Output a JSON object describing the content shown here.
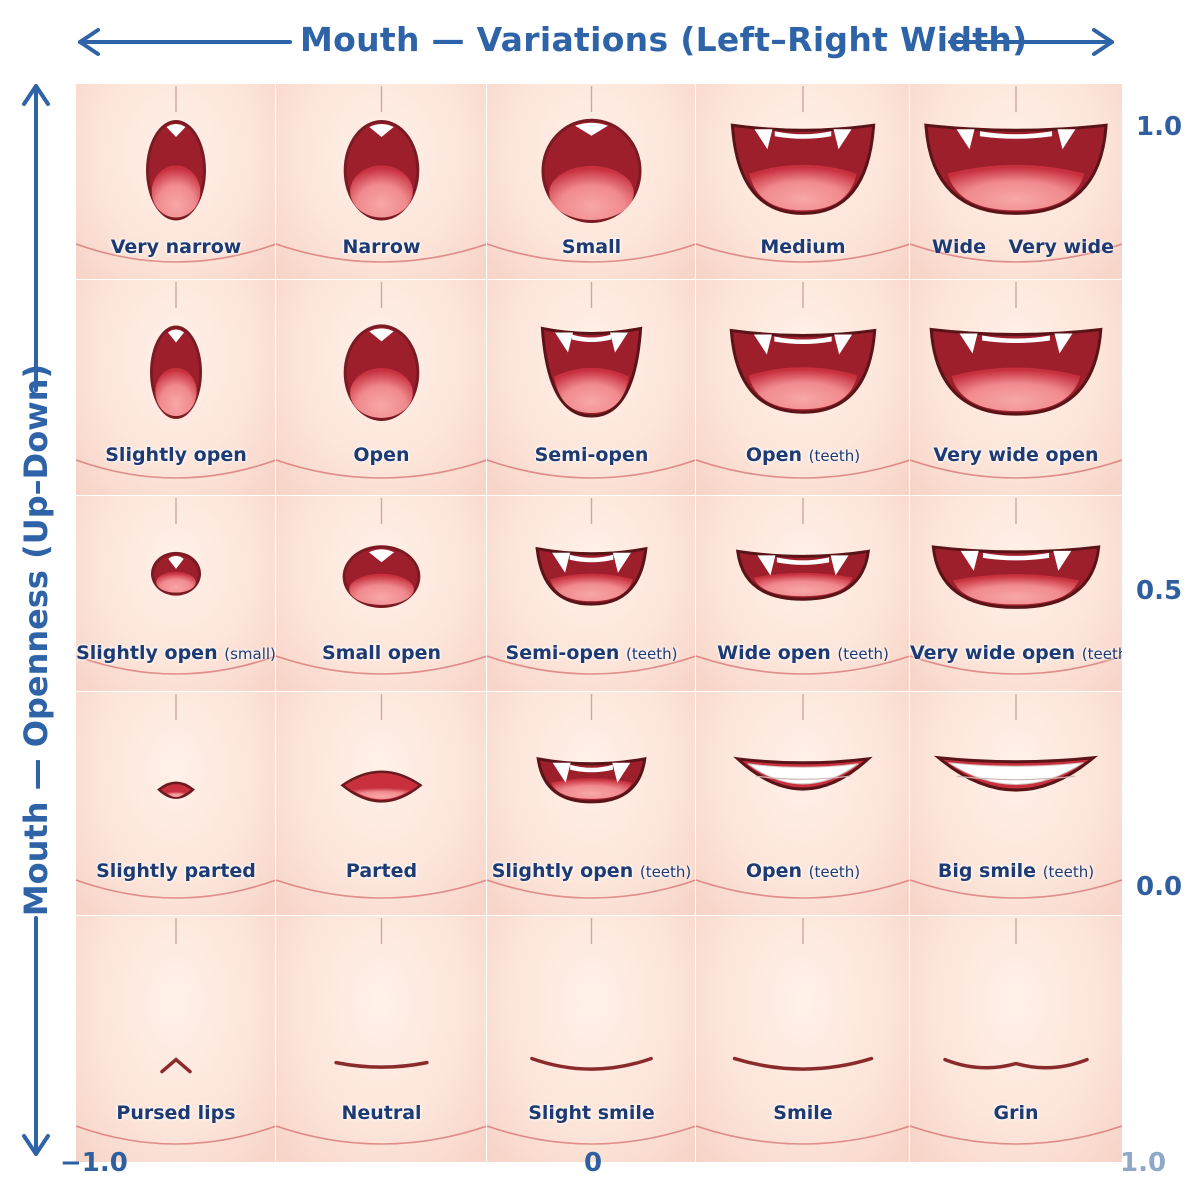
{
  "x_axis_title": "Mouth — Variations (Left–Right Width)",
  "y_axis_title": "Mouth — Openness (Up–Down)",
  "x_ticks": [
    "−1.0",
    "0",
    "1.0"
  ],
  "y_ticks": [
    "1.0",
    "0.5",
    "0.0"
  ],
  "rows": [
    {
      "cells": [
        {
          "label": "Very narrow",
          "shape": "oval",
          "w": 0.27,
          "h": 0.75,
          "teeth": "top-small"
        },
        {
          "label": "Narrow",
          "shape": "oval",
          "w": 0.33,
          "h": 0.75,
          "teeth": "top-small"
        },
        {
          "label": "Small",
          "shape": "round",
          "w": 0.45,
          "h": 0.78,
          "teeth": "fangs"
        },
        {
          "label": "Medium",
          "shape": "bowl",
          "w": 0.66,
          "h": 0.7,
          "teeth": "fangs"
        },
        {
          "label": "Wide",
          "label2": "Very wide",
          "shape": "bowl",
          "w": 0.85,
          "h": 0.7,
          "teeth": "fangs"
        }
      ]
    },
    {
      "cells": [
        {
          "label": "Slightly open",
          "shape": "oval",
          "w": 0.23,
          "h": 0.6,
          "teeth": "top-small"
        },
        {
          "label": "Open",
          "shape": "oval",
          "w": 0.33,
          "h": 0.62,
          "teeth": "top-small"
        },
        {
          "label": "Semi-open",
          "label_note": "",
          "shape": "bowl",
          "w": 0.47,
          "h": 0.6,
          "teeth": "fangs"
        },
        {
          "label": "Open",
          "label_note": "(teeth)",
          "shape": "bowl",
          "w": 0.67,
          "h": 0.56,
          "teeth": "fangs"
        },
        {
          "label": "Very wide open",
          "shape": "bowl",
          "w": 0.8,
          "h": 0.58,
          "teeth": "fangs"
        }
      ]
    },
    {
      "cells": [
        {
          "label": "Slightly open",
          "label_note": "(small)",
          "shape": "oval",
          "w": 0.22,
          "h": 0.3,
          "teeth": "top-small"
        },
        {
          "label": "Small open",
          "shape": "oval",
          "w": 0.34,
          "h": 0.45,
          "teeth": "top-small"
        },
        {
          "label": "Semi-open",
          "label_note": "(teeth)",
          "shape": "bowl",
          "w": 0.52,
          "h": 0.44,
          "teeth": "fangs"
        },
        {
          "label": "Wide open",
          "label_note": "(teeth)",
          "shape": "bowl",
          "w": 0.61,
          "h": 0.38,
          "teeth": "fangs"
        },
        {
          "label": "Very wide open",
          "label_note": "(teeth)",
          "shape": "bowl",
          "w": 0.78,
          "h": 0.48,
          "teeth": "fangs"
        }
      ]
    },
    {
      "cells": [
        {
          "label": "Slightly parted",
          "shape": "lens",
          "w": 0.17,
          "h": 0.08,
          "teeth": "none"
        },
        {
          "label": "Parted",
          "shape": "lens",
          "w": 0.37,
          "h": 0.16,
          "teeth": "none"
        },
        {
          "label": "Slightly open",
          "label_note": "(teeth)",
          "shape": "bowl",
          "w": 0.51,
          "h": 0.28,
          "teeth": "fangs"
        },
        {
          "label": "Open",
          "label_note": "(teeth)",
          "shape": "grin",
          "w": 0.61,
          "h": 0.28,
          "teeth": "full"
        },
        {
          "label": "Big smile",
          "label_note": "(teeth)",
          "shape": "grin",
          "w": 0.73,
          "h": 0.3,
          "teeth": "full"
        }
      ]
    },
    {
      "cells": [
        {
          "label": "Pursed lips",
          "shape": "pursed",
          "w": 0.14,
          "h": 0,
          "teeth": "none"
        },
        {
          "label": "Neutral",
          "shape": "line",
          "w": 0.43,
          "h": 0,
          "teeth": "none"
        },
        {
          "label": "Slight smile",
          "shape": "smile",
          "w": 0.57,
          "h": 0,
          "teeth": "none"
        },
        {
          "label": "Smile",
          "shape": "smile",
          "w": 0.64,
          "h": 0,
          "teeth": "none"
        },
        {
          "label": "Grin",
          "shape": "wave",
          "w": 0.67,
          "h": 0,
          "teeth": "none"
        }
      ]
    }
  ],
  "colors": {
    "axis": "#2f63a8",
    "label": "#1d3a73",
    "mouth_dark": "#9e1f2c",
    "mouth_mid": "#c8303e",
    "tongue": "#f08a8e",
    "lip_line": "#8a2a2a"
  }
}
